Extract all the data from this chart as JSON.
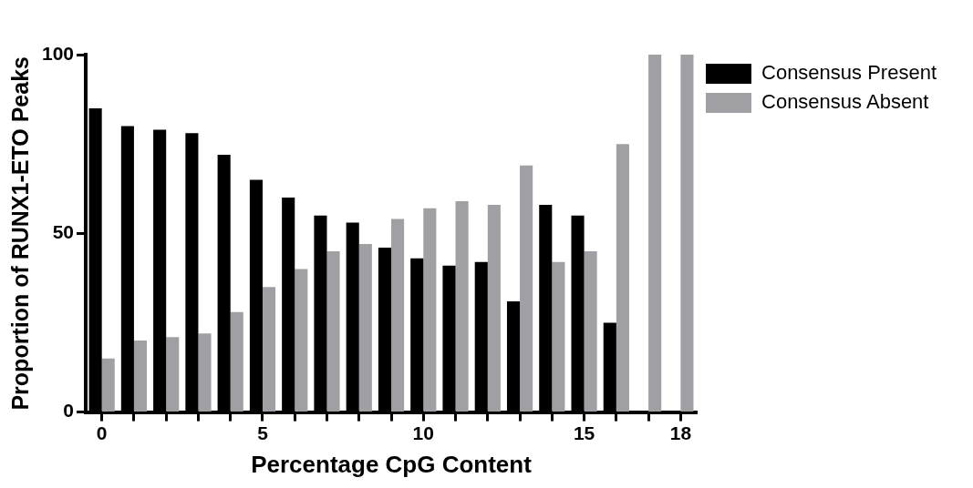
{
  "chart_data": {
    "type": "bar",
    "xlabel": "Percentage CpG Content",
    "ylabel": "Proportion of RUNX1-ETO Peaks",
    "categories": [
      "0",
      null,
      null,
      null,
      null,
      "5",
      null,
      null,
      null,
      null,
      "10",
      null,
      null,
      null,
      null,
      "15",
      null,
      null,
      "18"
    ],
    "series": [
      {
        "name": "Consensus Present",
        "color": "#000000",
        "values": [
          85,
          80,
          79,
          78,
          72,
          65,
          60,
          55,
          53,
          46,
          43,
          41,
          42,
          31,
          58,
          55,
          25,
          0,
          0
        ]
      },
      {
        "name": "Consensus Absent",
        "color": "#a0a0a4",
        "values": [
          15,
          20,
          21,
          22,
          28,
          35,
          40,
          45,
          47,
          54,
          57,
          59,
          58,
          69,
          42,
          45,
          75,
          100,
          100
        ]
      }
    ],
    "ylim": [
      0,
      100
    ],
    "yticks": [
      0,
      50,
      100
    ],
    "legend": "top right"
  }
}
